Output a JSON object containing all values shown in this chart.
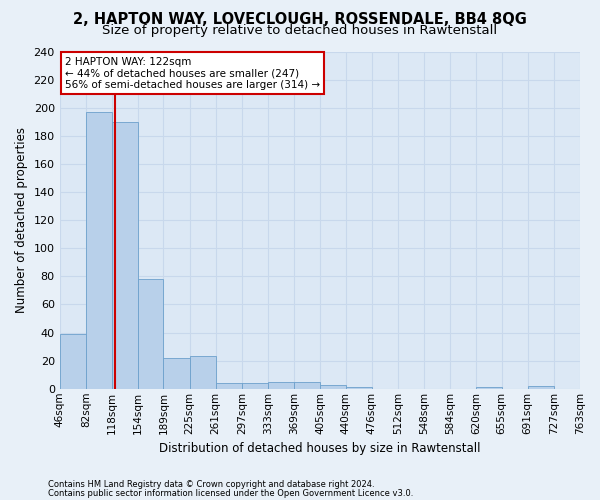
{
  "title": "2, HAPTON WAY, LOVECLOUGH, ROSSENDALE, BB4 8QG",
  "subtitle": "Size of property relative to detached houses in Rawtenstall",
  "xlabel": "Distribution of detached houses by size in Rawtenstall",
  "ylabel": "Number of detached properties",
  "footer1": "Contains HM Land Registry data © Crown copyright and database right 2024.",
  "footer2": "Contains public sector information licensed under the Open Government Licence v3.0.",
  "bin_edges": [
    46,
    82,
    118,
    154,
    189,
    225,
    261,
    297,
    333,
    369,
    405,
    440,
    476,
    512,
    548,
    584,
    620,
    655,
    691,
    727,
    763
  ],
  "bar_values": [
    39,
    197,
    190,
    78,
    22,
    23,
    4,
    4,
    5,
    5,
    3,
    1,
    0,
    0,
    0,
    0,
    1,
    0,
    2,
    0
  ],
  "bar_color": "#b8d0ea",
  "bar_edge_color": "#6ca0cc",
  "subject_size": 122,
  "red_line_color": "#cc0000",
  "annotation_line1": "2 HAPTON WAY: 122sqm",
  "annotation_line2": "← 44% of detached houses are smaller (247)",
  "annotation_line3": "56% of semi-detached houses are larger (314) →",
  "annotation_box_color": "#ffffff",
  "annotation_box_edge": "#cc0000",
  "ylim": [
    0,
    240
  ],
  "yticks": [
    0,
    20,
    40,
    60,
    80,
    100,
    120,
    140,
    160,
    180,
    200,
    220,
    240
  ],
  "bg_color": "#e8f0f8",
  "plot_bg_color": "#dce8f5",
  "grid_color": "#c8d8ec",
  "title_fontsize": 10.5,
  "subtitle_fontsize": 9.5,
  "tick_label_fontsize": 7.5,
  "ylabel_fontsize": 8.5,
  "xlabel_fontsize": 8.5,
  "annotation_fontsize": 7.5,
  "footer_fontsize": 6.0
}
